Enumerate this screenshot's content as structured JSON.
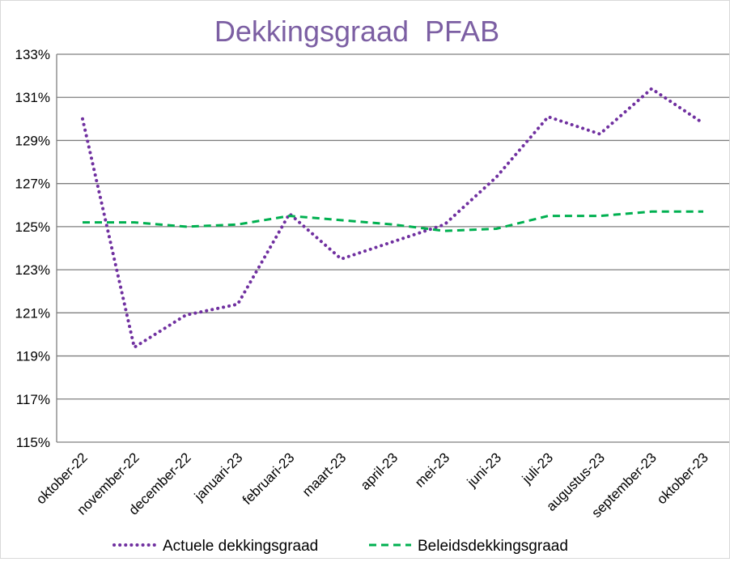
{
  "chart_data": {
    "type": "line",
    "title": "Dekkingsgraad  PFAB",
    "title_color": "#7c5fa3",
    "categories": [
      "oktober-22",
      "november-22",
      "december-22",
      "januari-23",
      "februari-23",
      "maart-23",
      "april-23",
      "mei-23",
      "juni-23",
      "juli-23",
      "augustus-23",
      "september-23",
      "oktober-23"
    ],
    "yticks": [
      "115%",
      "117%",
      "119%",
      "121%",
      "123%",
      "125%",
      "127%",
      "129%",
      "131%",
      "133%"
    ],
    "ylim": [
      115,
      133
    ],
    "grid": true,
    "legend_position": "bottom",
    "series": [
      {
        "name": "Actuele dekkingsgraad",
        "color": "#7030a0",
        "style": "dotted",
        "values": [
          130.0,
          119.4,
          120.9,
          121.4,
          125.6,
          123.5,
          124.3,
          125.1,
          127.3,
          130.1,
          129.3,
          131.4,
          129.8
        ]
      },
      {
        "name": "Beleidsdekkingsgraad",
        "color": "#00b050",
        "style": "dashed",
        "values": [
          125.2,
          125.2,
          125.0,
          125.1,
          125.5,
          125.3,
          125.1,
          124.8,
          124.9,
          125.5,
          125.5,
          125.7,
          125.7
        ]
      }
    ]
  }
}
